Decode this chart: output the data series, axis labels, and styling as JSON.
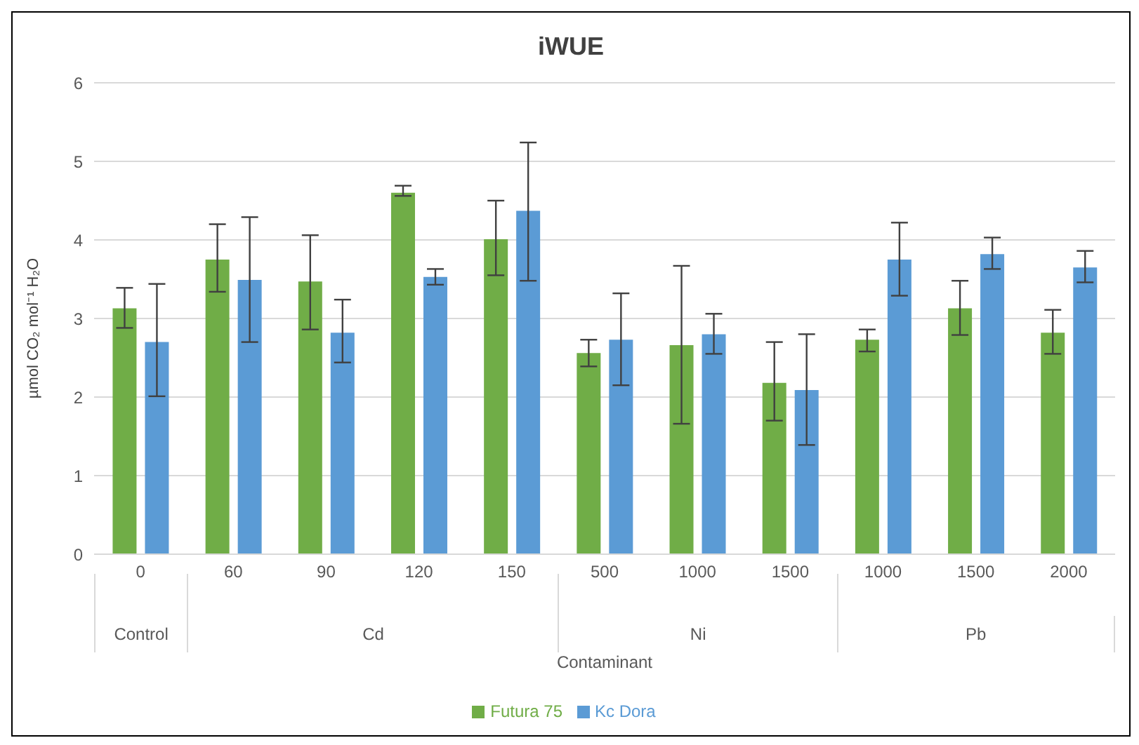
{
  "chart_data": {
    "type": "bar",
    "title": "iWUE",
    "xlabel": "Contaminant",
    "ylabel": "µmol CO₂ mol⁻¹ H₂O",
    "categories": [
      "0",
      "60",
      "90",
      "120",
      "150",
      "500",
      "1000",
      "1500",
      "1000",
      "1500",
      "2000"
    ],
    "annotations": [
      "Control",
      "Cd",
      "Ni",
      "Pb"
    ],
    "series": [
      {
        "name": "Futura 75",
        "color": "#70ad47",
        "values": [
          3.13,
          3.75,
          3.47,
          4.6,
          4.01,
          2.56,
          2.66,
          2.18,
          2.73,
          3.13,
          2.82
        ],
        "errors": [
          [
            2.88,
            3.39
          ],
          [
            3.34,
            4.2
          ],
          [
            2.86,
            4.06
          ],
          [
            4.56,
            4.69
          ],
          [
            3.55,
            4.5
          ],
          [
            2.39,
            2.73
          ],
          [
            1.66,
            3.67
          ],
          [
            1.7,
            2.7
          ],
          [
            2.58,
            2.86
          ],
          [
            2.79,
            3.48
          ],
          [
            2.55,
            3.11
          ]
        ]
      },
      {
        "name": "Kc Dora",
        "color": "#5b9bd5",
        "values": [
          2.7,
          3.49,
          2.82,
          3.53,
          4.37,
          2.73,
          2.8,
          2.09,
          3.75,
          3.82,
          3.65
        ],
        "errors": [
          [
            2.01,
            3.44
          ],
          [
            2.7,
            4.29
          ],
          [
            2.44,
            3.24
          ],
          [
            3.43,
            3.63
          ],
          [
            3.48,
            5.24
          ],
          [
            2.15,
            3.32
          ],
          [
            2.55,
            3.06
          ],
          [
            1.39,
            2.8
          ],
          [
            3.29,
            4.22
          ],
          [
            3.63,
            4.03
          ],
          [
            3.46,
            3.86
          ]
        ]
      }
    ],
    "ylim": [
      0,
      6
    ],
    "yticks": [
      0,
      1,
      2,
      3,
      4,
      5,
      6
    ],
    "grid": "y",
    "legend": "bottom"
  }
}
